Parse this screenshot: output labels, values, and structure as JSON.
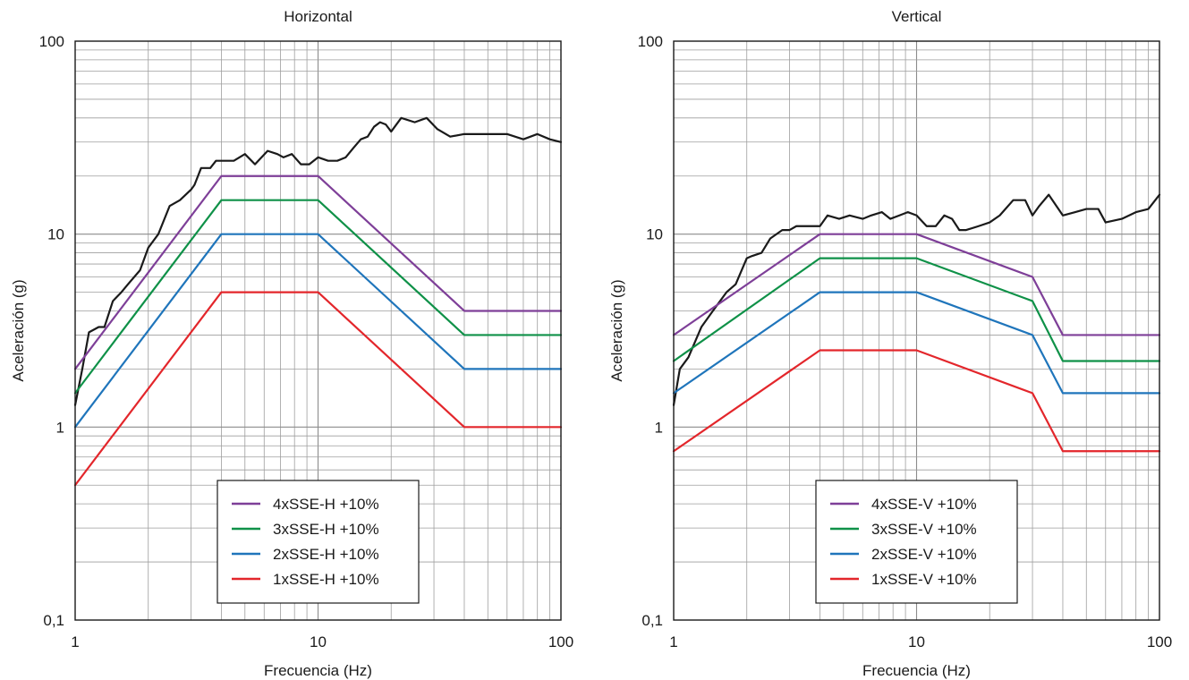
{
  "chart_data": [
    {
      "type": "line",
      "title": "Horizontal",
      "xlabel": "Frecuencia (Hz)",
      "ylabel": "Aceleración (g)",
      "xscale": "log",
      "yscale": "log",
      "xlim": [
        1,
        100
      ],
      "ylim": [
        0.1,
        100
      ],
      "xticks": [
        "1",
        "10",
        "100"
      ],
      "yticks": [
        "0,1",
        "1",
        "10",
        "100"
      ],
      "grid": true,
      "legend_position": "bottom-center",
      "series": [
        {
          "color": "#1a1a1a",
          "x": [
            1.0,
            1.07,
            1.14,
            1.25,
            1.32,
            1.43,
            1.55,
            1.65,
            1.85,
            2.0,
            2.2,
            2.45,
            2.7,
            3.0,
            3.1,
            3.3,
            3.6,
            3.8,
            4.2,
            4.5,
            5.0,
            5.5,
            6.2,
            6.8,
            7.2,
            7.8,
            8.5,
            9.2,
            10.0,
            11.0,
            12.0,
            13.0,
            14.0,
            15.0,
            16.0,
            17.0,
            18.0,
            19.0,
            20.0,
            22.0,
            25.0,
            28.0,
            31.0,
            35.0,
            40.0,
            45.0,
            50.0,
            56.0,
            60.0,
            70.0,
            80.0,
            90.0,
            100.0
          ],
          "y": [
            1.3,
            2.0,
            3.1,
            3.3,
            3.3,
            4.5,
            5.0,
            5.5,
            6.5,
            8.5,
            10.0,
            14.0,
            15.0,
            17.0,
            18.0,
            22.0,
            22.0,
            24.0,
            24.0,
            24.0,
            26.0,
            23.0,
            27.0,
            26.0,
            25.0,
            26.0,
            23.0,
            23.0,
            25.0,
            24.0,
            24.0,
            25.0,
            28.0,
            31.0,
            32.0,
            36.0,
            38.0,
            37.0,
            34.0,
            40.0,
            38.0,
            40.0,
            35.0,
            32.0,
            33.0,
            33.0,
            33.0,
            33.0,
            33.0,
            31.0,
            33.0,
            31.0,
            30.0
          ]
        },
        {
          "name": "4xSSE-H +10%",
          "color": "#7e3f98",
          "x": [
            1,
            4,
            10,
            40,
            100
          ],
          "y": [
            2.0,
            20.0,
            20.0,
            4.0,
            4.0
          ]
        },
        {
          "name": "3xSSE-H +10%",
          "color": "#0f9148",
          "x": [
            1,
            4,
            10,
            40,
            100
          ],
          "y": [
            1.5,
            15.0,
            15.0,
            3.0,
            3.0
          ]
        },
        {
          "name": "2xSSE-H +10%",
          "color": "#1f75bb",
          "x": [
            1,
            4,
            10,
            40,
            100
          ],
          "y": [
            1.0,
            10.0,
            10.0,
            2.0,
            2.0
          ]
        },
        {
          "name": "1xSSE-H +10%",
          "color": "#e3262b",
          "x": [
            1,
            4,
            10,
            40,
            100
          ],
          "y": [
            0.5,
            5.0,
            5.0,
            1.0,
            1.0
          ]
        }
      ]
    },
    {
      "type": "line",
      "title": "Vertical",
      "xlabel": "Frecuencia (Hz)",
      "ylabel": "Aceleración (g)",
      "xscale": "log",
      "yscale": "log",
      "xlim": [
        1,
        100
      ],
      "ylim": [
        0.1,
        100
      ],
      "xticks": [
        "1",
        "10",
        "100"
      ],
      "yticks": [
        "0,1",
        "1",
        "10",
        "100"
      ],
      "grid": true,
      "legend_position": "bottom-center",
      "series": [
        {
          "color": "#1a1a1a",
          "x": [
            1.0,
            1.06,
            1.15,
            1.3,
            1.45,
            1.65,
            1.8,
            2.0,
            2.1,
            2.3,
            2.5,
            2.8,
            3.0,
            3.2,
            3.5,
            4.0,
            4.3,
            4.8,
            5.3,
            6.0,
            6.5,
            7.2,
            7.8,
            8.5,
            9.2,
            10.0,
            11.0,
            12.0,
            13.0,
            14.0,
            15.0,
            16.0,
            18.0,
            20.0,
            22.0,
            25.0,
            28.0,
            30.0,
            32.0,
            35.0,
            40.0,
            45.0,
            50.0,
            56.0,
            60.0,
            70.0,
            80.0,
            90.0,
            100.0
          ],
          "y": [
            1.3,
            2.0,
            2.3,
            3.3,
            4.0,
            5.0,
            5.5,
            7.5,
            7.7,
            8.0,
            9.5,
            10.5,
            10.5,
            11.0,
            11.0,
            11.0,
            12.5,
            12.0,
            12.5,
            12.0,
            12.5,
            13.0,
            12.0,
            12.5,
            13.0,
            12.5,
            11.0,
            11.0,
            12.5,
            12.0,
            10.5,
            10.5,
            11.0,
            11.5,
            12.5,
            15.0,
            15.0,
            12.5,
            14.0,
            16.0,
            12.5,
            13.0,
            13.5,
            13.5,
            11.5,
            12.0,
            13.0,
            13.5,
            16.0
          ]
        },
        {
          "name": "4xSSE-V +10%",
          "color": "#7e3f98",
          "x": [
            1,
            4,
            10,
            30,
            40,
            100
          ],
          "y": [
            3.0,
            10.0,
            10.0,
            6.0,
            3.0,
            3.0
          ]
        },
        {
          "name": "3xSSE-V +10%",
          "color": "#0f9148",
          "x": [
            1,
            4,
            10,
            30,
            40,
            100
          ],
          "y": [
            2.2,
            7.5,
            7.5,
            4.5,
            2.2,
            2.2
          ]
        },
        {
          "name": "2xSSE-V +10%",
          "color": "#1f75bb",
          "x": [
            1,
            4,
            10,
            30,
            40,
            100
          ],
          "y": [
            1.5,
            5.0,
            5.0,
            3.0,
            1.5,
            1.5
          ]
        },
        {
          "name": "1xSSE-V +10%",
          "color": "#e3262b",
          "x": [
            1,
            4,
            10,
            30,
            40,
            100
          ],
          "y": [
            0.75,
            2.5,
            2.5,
            1.5,
            0.75,
            0.75
          ]
        }
      ]
    }
  ]
}
